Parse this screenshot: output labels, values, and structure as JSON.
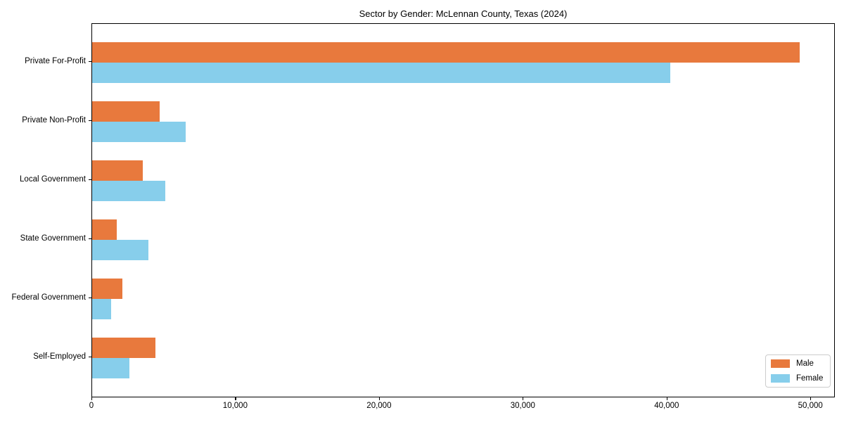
{
  "chart_data": {
    "type": "bar",
    "orientation": "horizontal",
    "title": "Sector by Gender: McLennan County, Texas (2024)",
    "categories": [
      "Private For-Profit",
      "Private Non-Profit",
      "Local Government",
      "State Government",
      "Federal Government",
      "Self-Employed"
    ],
    "series": [
      {
        "name": "Male",
        "color": "#E8793D",
        "values": [
          49200,
          4700,
          3500,
          1700,
          2100,
          4400
        ]
      },
      {
        "name": "Female",
        "color": "#87CEEB",
        "values": [
          40200,
          6500,
          5100,
          3900,
          1300,
          2600
        ]
      }
    ],
    "xlabel": "",
    "ylabel": "",
    "xlim": [
      0,
      51700
    ],
    "xticks": [
      0,
      10000,
      20000,
      30000,
      40000,
      50000
    ],
    "xtick_labels": [
      "0",
      "10,000",
      "20,000",
      "30,000",
      "40,000",
      "50,000"
    ],
    "grid": false,
    "legend_position": "lower right",
    "frame": "full-box"
  }
}
